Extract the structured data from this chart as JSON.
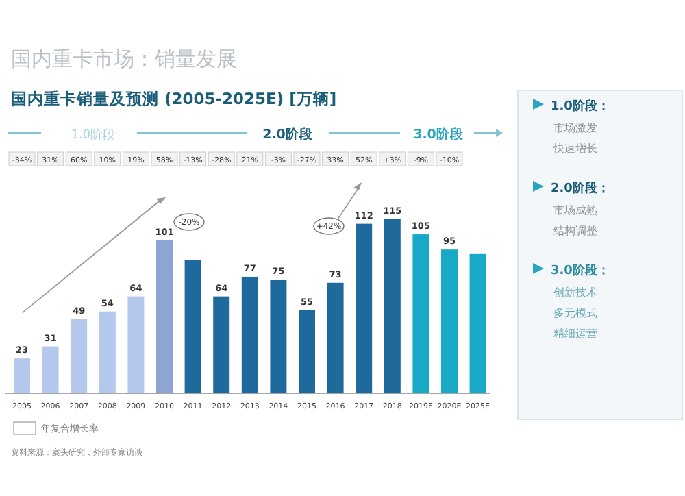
{
  "chart_data": {
    "type": "bar",
    "title": "国内重卡市场：销量发展",
    "subtitle": "国内重卡销量及预测 (2005-2025E) [万辆]",
    "categories": [
      "2005",
      "2006",
      "2007",
      "2008",
      "2009",
      "2010",
      "2011",
      "2012",
      "2013",
      "2014",
      "2015",
      "2016",
      "2017",
      "2018",
      "2019E",
      "2020E",
      "2025E"
    ],
    "values": [
      23,
      31,
      49,
      54,
      64,
      101,
      88,
      64,
      77,
      75,
      55,
      73,
      112,
      115,
      105,
      95,
      92
    ],
    "value_labels": [
      "23",
      "31",
      "49",
      "54",
      "64",
      "101",
      null,
      "64",
      "77",
      "75",
      "55",
      "73",
      "112",
      "115",
      "105",
      "95",
      null
    ],
    "colors": [
      "#b3c8ec",
      "#b3c8ec",
      "#b3c8ec",
      "#b3c8ec",
      "#b3c8ec",
      "#8ea4d2",
      "#1f6a9c",
      "#1f6a9c",
      "#1f6a9c",
      "#1f6a9c",
      "#1f6a9c",
      "#1f6a9c",
      "#1f6a9c",
      "#1f6a9c",
      "#18a9c6",
      "#18a9c6",
      "#18a9c6"
    ],
    "annotations": [
      "1.0阶段",
      "2.0阶段",
      "3.0阶段",
      "-20%",
      "+42%",
      "1.0阶段：",
      "市场激发",
      "快速增长",
      "2.0阶段：",
      "市场成熟",
      "结构调整",
      "3.0阶段：",
      "创新技术",
      "多元模式",
      "精细运营",
      "年复合增长率",
      "资料来源：案头研究，外部专家访谈",
      "-34%",
      "31%",
      "60%",
      "10%",
      "19%",
      "58%",
      "-13%",
      "-28%",
      "21%",
      "-3%",
      "-27%",
      "33%",
      "52%",
      "+3%",
      "-9%",
      "-10%"
    ]
  }
}
